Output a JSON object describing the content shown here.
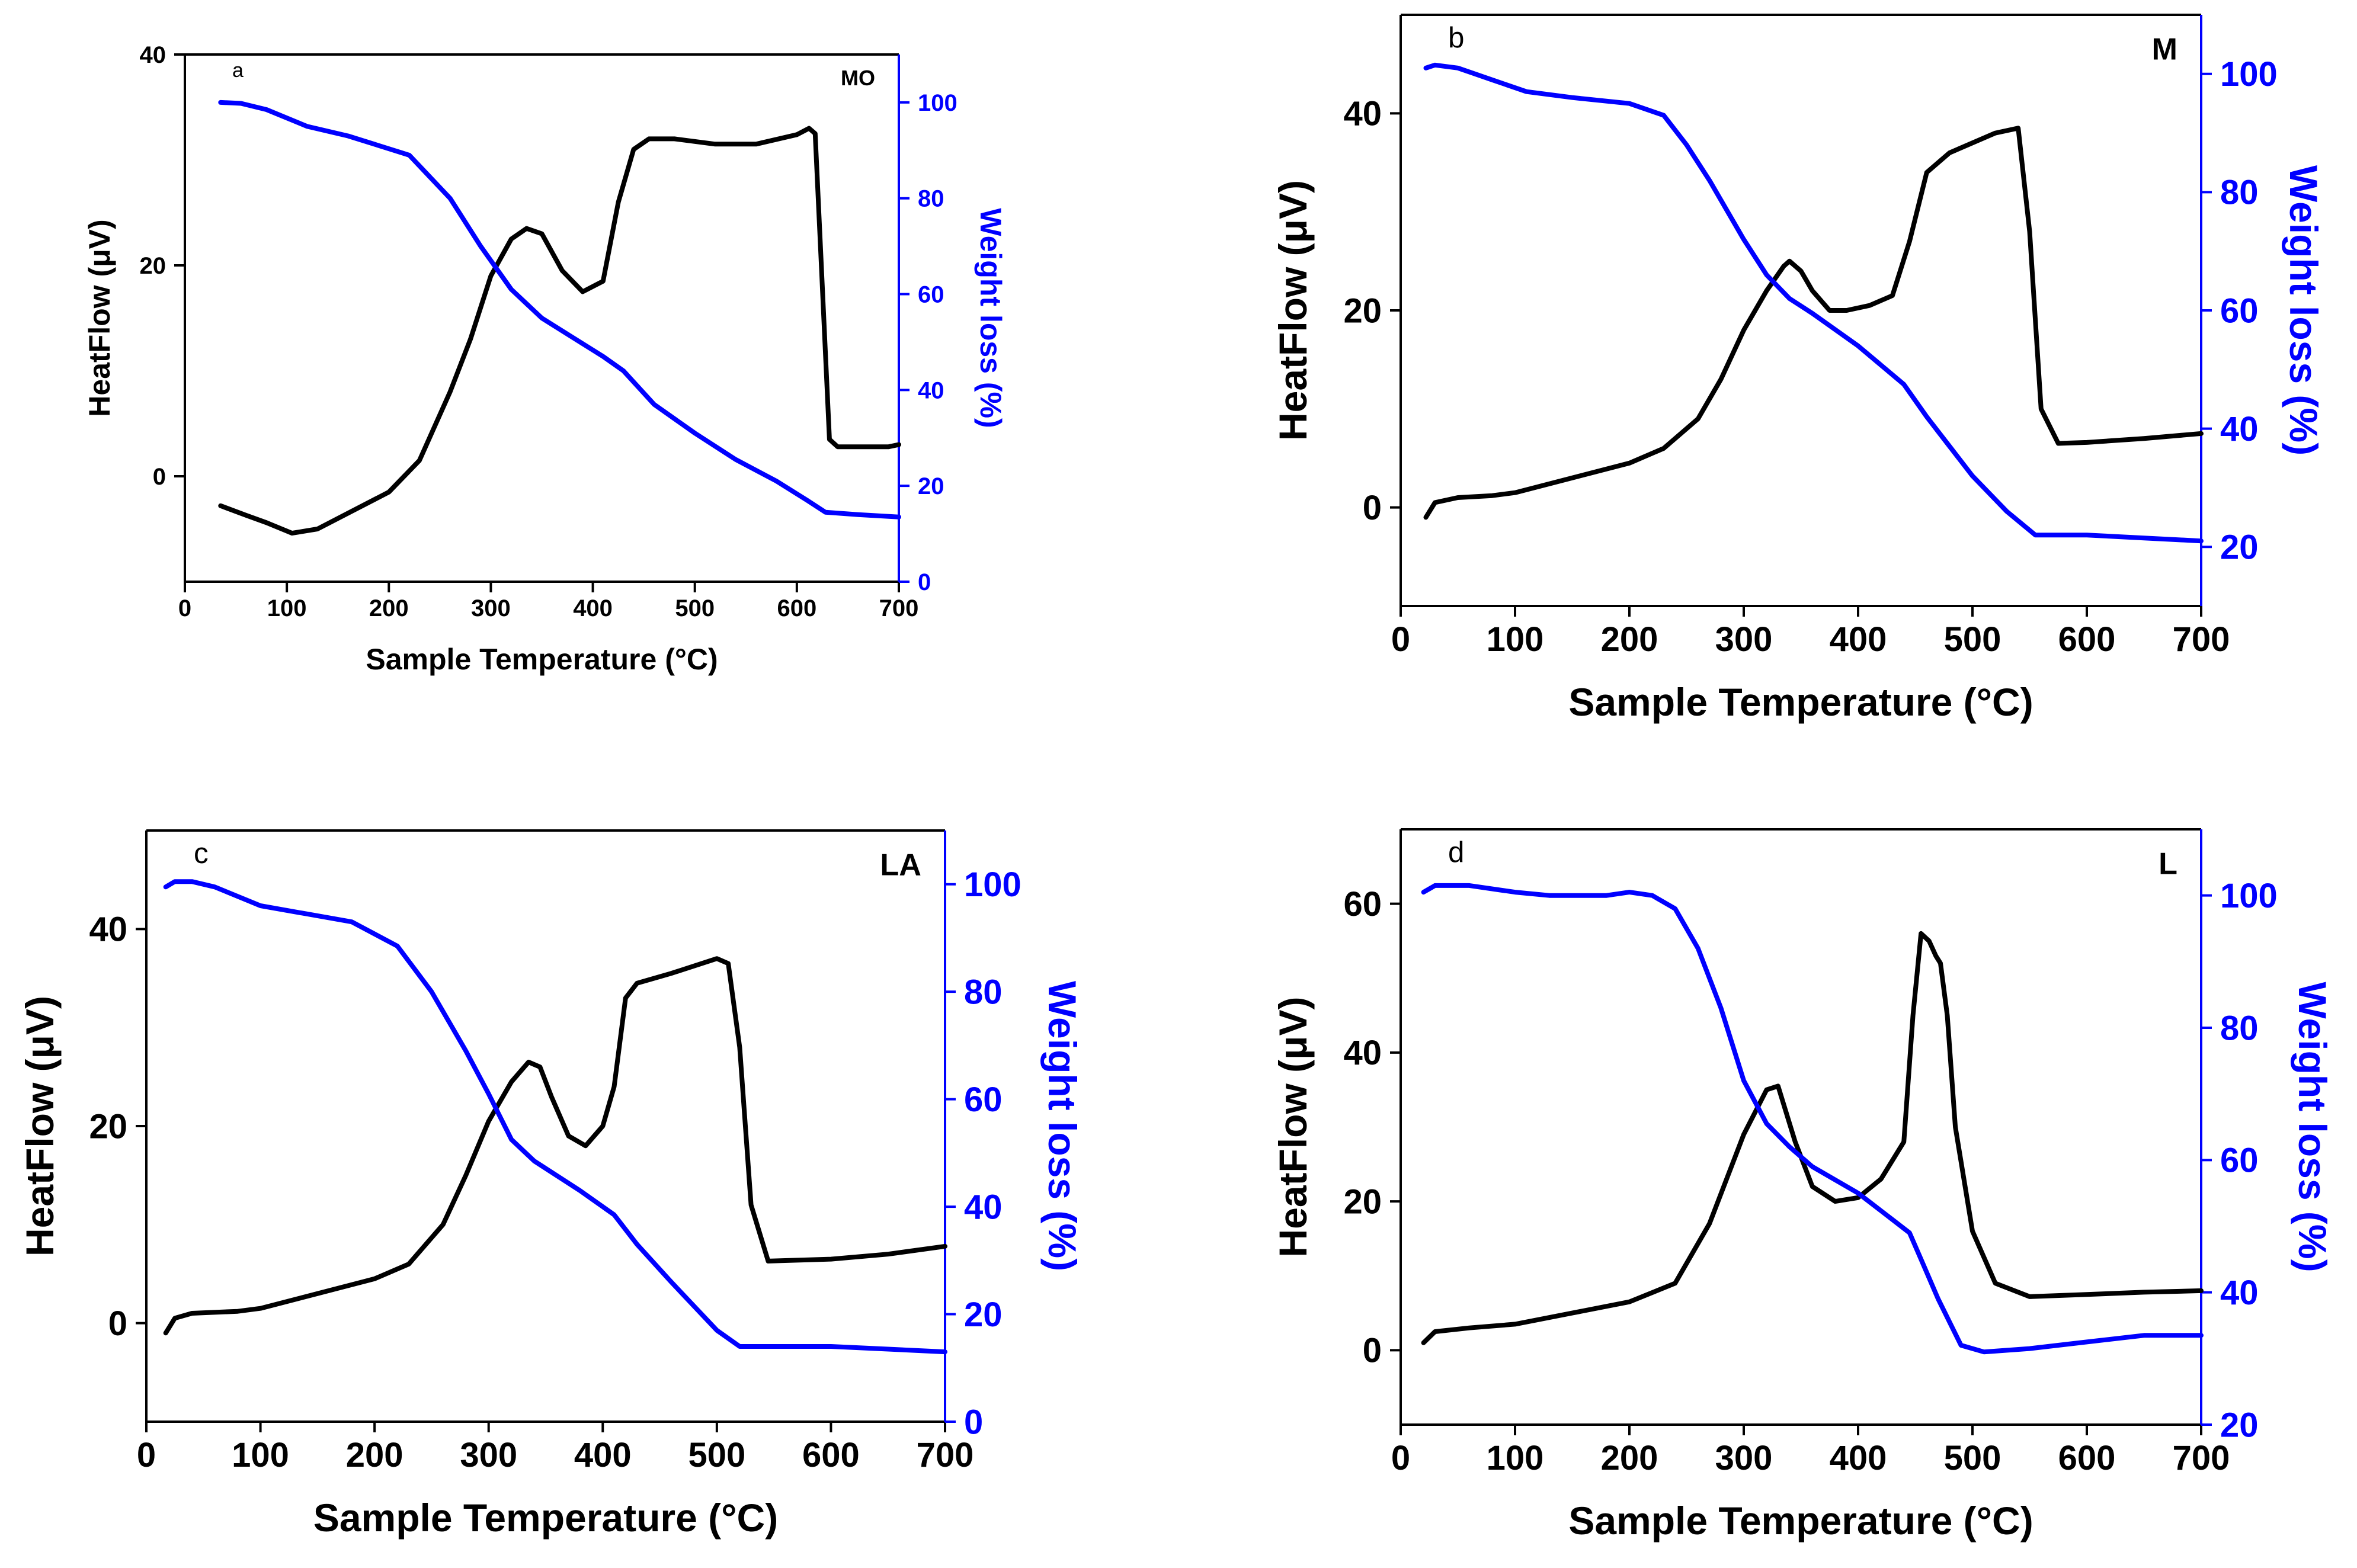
{
  "chart_data": [
    {
      "type": "line",
      "panel_label": "a",
      "sample": "MO",
      "xlabel": "Sample Temperature (°C)",
      "ylabel": "HeatFlow (μV)",
      "y2label": "Weight loss (%)",
      "xlim": [
        0,
        700
      ],
      "ylim": [
        -10,
        40
      ],
      "y2lim": [
        0,
        110
      ],
      "xticks": [
        0,
        100,
        200,
        300,
        400,
        500,
        600,
        700
      ],
      "yticks": [
        0,
        20,
        40
      ],
      "y2ticks": [
        0,
        20,
        40,
        60,
        80,
        100
      ],
      "series": [
        {
          "name": "HeatFlow",
          "axis": "left",
          "color": "#000000",
          "x": [
            35,
            60,
            80,
            105,
            130,
            160,
            200,
            230,
            260,
            280,
            300,
            320,
            335,
            350,
            370,
            390,
            410,
            425,
            440,
            455,
            480,
            520,
            560,
            600,
            612,
            618,
            624,
            632,
            640,
            660,
            690,
            700
          ],
          "y": [
            -2.8,
            -3.7,
            -4.4,
            -5.4,
            -5,
            -3.5,
            -1.5,
            1.5,
            8,
            13,
            19,
            22.5,
            23.5,
            23,
            19.5,
            17.5,
            18.5,
            26,
            31,
            32,
            32,
            31.5,
            31.5,
            32.4,
            33,
            32.5,
            20,
            3.5,
            2.8,
            2.8,
            2.8,
            3
          ]
        },
        {
          "name": "Weight loss",
          "axis": "right",
          "color": "#0000ff",
          "x": [
            35,
            55,
            80,
            120,
            160,
            220,
            260,
            290,
            320,
            350,
            380,
            410,
            430,
            460,
            500,
            540,
            580,
            610,
            628,
            660,
            700
          ],
          "y": [
            100,
            99.8,
            98.5,
            95,
            93,
            89,
            80,
            70,
            61,
            55,
            51,
            47,
            44,
            37,
            31,
            25.5,
            21,
            17,
            14.5,
            14,
            13.5
          ]
        }
      ]
    },
    {
      "type": "line",
      "panel_label": "b",
      "sample": "M",
      "xlabel": "Sample Temperature (°C)",
      "ylabel": "HeatFlow (μV)",
      "y2label": "Weight loss (%)",
      "xlim": [
        0,
        700
      ],
      "ylim": [
        -10,
        50
      ],
      "y2lim": [
        10,
        110
      ],
      "xticks": [
        0,
        100,
        200,
        300,
        400,
        500,
        600,
        700
      ],
      "yticks": [
        0,
        20,
        40
      ],
      "y2ticks": [
        20,
        40,
        60,
        80,
        100
      ],
      "series": [
        {
          "name": "HeatFlow",
          "axis": "left",
          "color": "#000000",
          "x": [
            22,
            30,
            50,
            80,
            100,
            150,
            200,
            230,
            260,
            280,
            300,
            320,
            335,
            340,
            350,
            360,
            375,
            390,
            410,
            430,
            445,
            460,
            480,
            520,
            540,
            550,
            560,
            575,
            600,
            650,
            700
          ],
          "y": [
            -1,
            0.5,
            1,
            1.2,
            1.5,
            3,
            4.5,
            6,
            9,
            13,
            18,
            22,
            24.5,
            25,
            24,
            22,
            20,
            20,
            20.5,
            21.5,
            27,
            34,
            36,
            38,
            38.5,
            28,
            10,
            6.5,
            6.6,
            7,
            7.5
          ]
        },
        {
          "name": "Weight loss",
          "axis": "right",
          "color": "#0000ff",
          "x": [
            22,
            30,
            50,
            80,
            110,
            150,
            200,
            230,
            250,
            270,
            300,
            320,
            340,
            360,
            400,
            440,
            460,
            480,
            500,
            530,
            555,
            600,
            650,
            700
          ],
          "y": [
            101,
            101.5,
            101,
            99,
            97,
            96,
            95,
            93,
            88,
            82,
            72,
            66,
            62,
            59.5,
            54,
            47.5,
            42,
            37,
            32,
            26,
            22,
            22,
            21.5,
            21
          ]
        }
      ]
    },
    {
      "type": "line",
      "panel_label": "c",
      "sample": "LA",
      "xlabel": "Sample Temperature (°C)",
      "ylabel": "HeatFlow (μV)",
      "y2label": "Weight loss (%)",
      "xlim": [
        0,
        700
      ],
      "ylim": [
        -10,
        50
      ],
      "y2lim": [
        0,
        110
      ],
      "xticks": [
        0,
        100,
        200,
        300,
        400,
        500,
        600,
        700
      ],
      "yticks": [
        0,
        20,
        40
      ],
      "y2ticks": [
        0,
        20,
        40,
        60,
        80,
        100
      ],
      "series": [
        {
          "name": "HeatFlow",
          "axis": "left",
          "color": "#000000",
          "x": [
            17,
            25,
            40,
            80,
            100,
            150,
            200,
            230,
            260,
            280,
            300,
            320,
            335,
            345,
            355,
            370,
            385,
            400,
            410,
            420,
            430,
            460,
            500,
            510,
            520,
            530,
            545,
            600,
            650,
            700
          ],
          "y": [
            -1,
            0.5,
            1,
            1.2,
            1.5,
            3,
            4.5,
            6,
            10,
            15,
            20.5,
            24.5,
            26.5,
            26,
            23,
            19,
            18,
            20,
            24,
            33,
            34.5,
            35.5,
            37,
            36.5,
            28,
            12,
            6.3,
            6.5,
            7,
            7.8
          ]
        },
        {
          "name": "Weight loss",
          "axis": "right",
          "color": "#0000ff",
          "x": [
            17,
            25,
            40,
            60,
            100,
            140,
            180,
            220,
            250,
            280,
            300,
            320,
            340,
            380,
            410,
            430,
            460,
            500,
            520,
            560,
            600,
            650,
            700
          ],
          "y": [
            99.5,
            100.5,
            100.5,
            99.5,
            96,
            94.5,
            93,
            88.5,
            80,
            69,
            61,
            52.5,
            48.5,
            43,
            38.5,
            33,
            26,
            17,
            14,
            14,
            14,
            13.5,
            13
          ]
        }
      ]
    },
    {
      "type": "line",
      "panel_label": "d",
      "sample": "L",
      "xlabel": "Sample Temperature (°C)",
      "ylabel": "HeatFlow (μV)",
      "y2label": "Weight loss (%)",
      "xlim": [
        0,
        700
      ],
      "ylim": [
        -10,
        70
      ],
      "y2lim": [
        20,
        110
      ],
      "xticks": [
        0,
        100,
        200,
        300,
        400,
        500,
        600,
        700
      ],
      "yticks": [
        0,
        20,
        40,
        60
      ],
      "y2ticks": [
        20,
        40,
        60,
        80,
        100
      ],
      "series": [
        {
          "name": "HeatFlow",
          "axis": "left",
          "color": "#000000",
          "x": [
            20,
            30,
            60,
            100,
            150,
            200,
            240,
            270,
            300,
            320,
            330,
            345,
            360,
            380,
            400,
            420,
            440,
            448,
            455,
            462,
            468,
            472,
            478,
            485,
            500,
            520,
            550,
            600,
            650,
            700
          ],
          "y": [
            1,
            2.5,
            3,
            3.5,
            5,
            6.5,
            9,
            17,
            29,
            35,
            35.5,
            28,
            22,
            20,
            20.5,
            23,
            28,
            45,
            56,
            55,
            53,
            52,
            45,
            30,
            16,
            9,
            7.2,
            7.5,
            7.8,
            8
          ]
        },
        {
          "name": "Weight loss",
          "axis": "right",
          "color": "#0000ff",
          "x": [
            20,
            30,
            60,
            100,
            130,
            180,
            200,
            220,
            240,
            260,
            280,
            300,
            320,
            340,
            360,
            400,
            430,
            445,
            455,
            470,
            490,
            510,
            550,
            600,
            650,
            700
          ],
          "y": [
            100.5,
            101.5,
            101.5,
            100.5,
            100,
            100,
            100.5,
            100,
            98,
            92,
            83,
            72,
            65.5,
            62,
            59,
            55,
            51,
            49,
            45,
            39,
            32,
            31,
            31.5,
            32.5,
            33.5,
            33.5
          ]
        }
      ]
    }
  ]
}
